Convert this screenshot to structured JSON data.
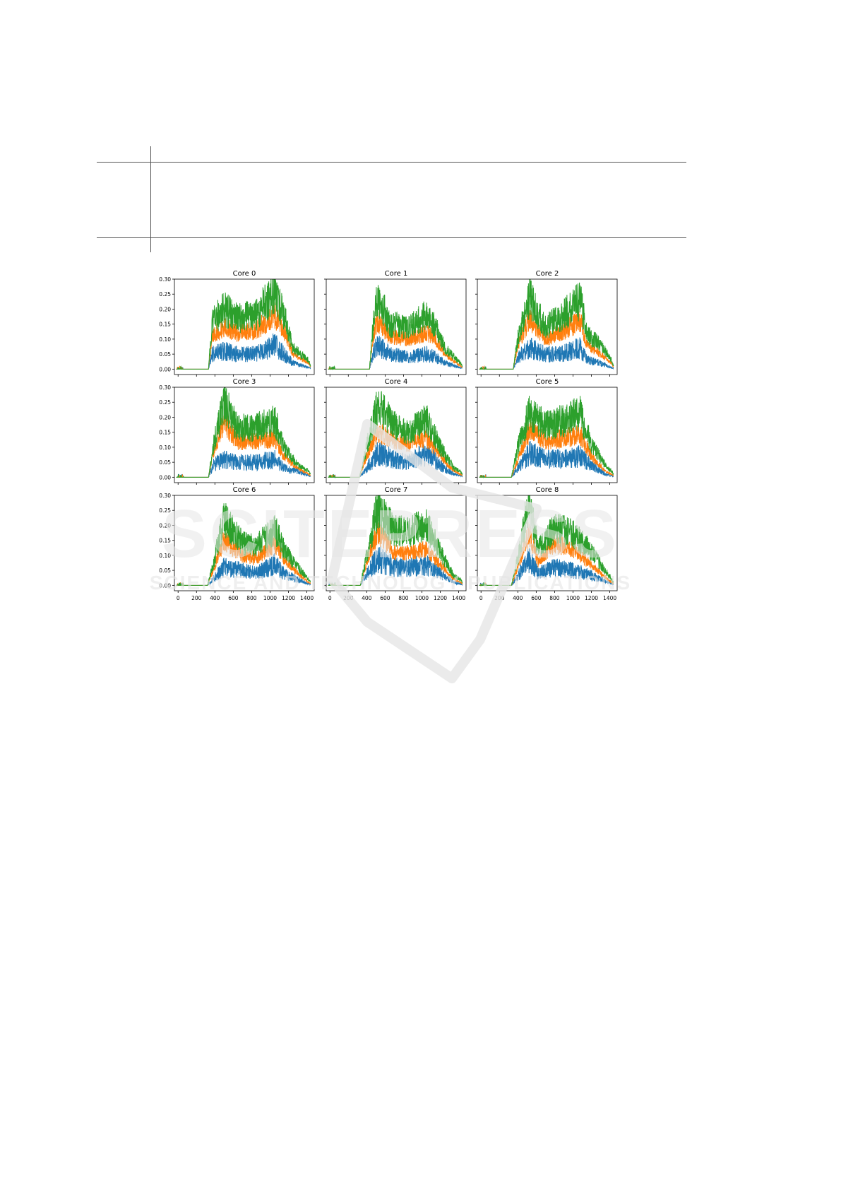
{
  "watermark": {
    "line1": "SCITEPRESS",
    "line2": "SCIENCE AND TECHNOLOGY PUBLICATIONS"
  },
  "colors": {
    "blue": "#1f77b4",
    "orange": "#ff7f0e",
    "green": "#2ca02c",
    "watermark": "#e6e6e6"
  },
  "chart_data": {
    "type": "line",
    "xlim": [
      -40,
      1480
    ],
    "ylim": [
      -0.018,
      0.3
    ],
    "xticks": [
      0,
      200,
      400,
      600,
      800,
      1000,
      1200,
      1400
    ],
    "yticks": [
      0.0,
      0.05,
      0.1,
      0.15,
      0.2,
      0.25,
      0.3
    ],
    "subplots": [
      {
        "title": "Core 0",
        "onset": 330,
        "peaks": [
          [
            370,
            0.05,
            0.11,
            0.16
          ],
          [
            500,
            0.06,
            0.14,
            0.2
          ],
          [
            650,
            0.05,
            0.12,
            0.17
          ],
          [
            850,
            0.05,
            0.13,
            0.18
          ],
          [
            1050,
            0.08,
            0.18,
            0.26
          ],
          [
            1150,
            0.05,
            0.13,
            0.18
          ],
          [
            1250,
            0.02,
            0.05,
            0.07
          ],
          [
            1420,
            0.005,
            0.02,
            0.03
          ]
        ]
      },
      {
        "title": "Core 1",
        "onset": 430,
        "peaks": [
          [
            470,
            0.05,
            0.11,
            0.15
          ],
          [
            520,
            0.08,
            0.16,
            0.25
          ],
          [
            650,
            0.05,
            0.11,
            0.15
          ],
          [
            850,
            0.04,
            0.1,
            0.14
          ],
          [
            1050,
            0.05,
            0.12,
            0.18
          ],
          [
            1150,
            0.04,
            0.1,
            0.14
          ],
          [
            1250,
            0.02,
            0.05,
            0.07
          ],
          [
            1420,
            0.005,
            0.01,
            0.02
          ]
        ]
      },
      {
        "title": "Core 2",
        "onset": 350,
        "peaks": [
          [
            400,
            0.04,
            0.08,
            0.1
          ],
          [
            530,
            0.07,
            0.17,
            0.24
          ],
          [
            700,
            0.05,
            0.1,
            0.14
          ],
          [
            850,
            0.05,
            0.12,
            0.17
          ],
          [
            1080,
            0.07,
            0.16,
            0.23
          ],
          [
            1150,
            0.03,
            0.08,
            0.12
          ],
          [
            1300,
            0.02,
            0.05,
            0.08
          ],
          [
            1420,
            0.005,
            0.02,
            0.03
          ]
        ]
      },
      {
        "title": "Core 3",
        "onset": 330,
        "peaks": [
          [
            380,
            0.04,
            0.08,
            0.1
          ],
          [
            500,
            0.06,
            0.18,
            0.25
          ],
          [
            650,
            0.05,
            0.12,
            0.16
          ],
          [
            850,
            0.05,
            0.12,
            0.17
          ],
          [
            1050,
            0.06,
            0.13,
            0.19
          ],
          [
            1150,
            0.03,
            0.07,
            0.1
          ],
          [
            1300,
            0.02,
            0.03,
            0.04
          ],
          [
            1420,
            0.005,
            0.01,
            0.02
          ]
        ]
      },
      {
        "title": "Core 4",
        "onset": 320,
        "peaks": [
          [
            400,
            0.03,
            0.07,
            0.1
          ],
          [
            520,
            0.08,
            0.15,
            0.24
          ],
          [
            700,
            0.06,
            0.12,
            0.17
          ],
          [
            850,
            0.05,
            0.11,
            0.15
          ],
          [
            1050,
            0.08,
            0.13,
            0.19
          ],
          [
            1200,
            0.04,
            0.07,
            0.1
          ],
          [
            1350,
            0.01,
            0.02,
            0.03
          ],
          [
            1420,
            0.005,
            0.01,
            0.02
          ]
        ]
      },
      {
        "title": "Core 5",
        "onset": 330,
        "peaks": [
          [
            400,
            0.03,
            0.06,
            0.1
          ],
          [
            530,
            0.08,
            0.16,
            0.22
          ],
          [
            700,
            0.06,
            0.12,
            0.17
          ],
          [
            900,
            0.06,
            0.13,
            0.19
          ],
          [
            1080,
            0.07,
            0.14,
            0.21
          ],
          [
            1200,
            0.04,
            0.07,
            0.11
          ],
          [
            1350,
            0.01,
            0.02,
            0.04
          ],
          [
            1420,
            0.005,
            0.01,
            0.02
          ]
        ]
      },
      {
        "title": "Core 6",
        "onset": 320,
        "peaks": [
          [
            380,
            0.02,
            0.05,
            0.07
          ],
          [
            500,
            0.06,
            0.15,
            0.22
          ],
          [
            700,
            0.05,
            0.1,
            0.14
          ],
          [
            850,
            0.04,
            0.09,
            0.13
          ],
          [
            1050,
            0.07,
            0.14,
            0.19
          ],
          [
            1150,
            0.04,
            0.09,
            0.12
          ],
          [
            1300,
            0.02,
            0.04,
            0.06
          ],
          [
            1420,
            0.005,
            0.01,
            0.02
          ]
        ]
      },
      {
        "title": "Core 7",
        "onset": 330,
        "peaks": [
          [
            400,
            0.04,
            0.08,
            0.1
          ],
          [
            520,
            0.09,
            0.18,
            0.26
          ],
          [
            700,
            0.06,
            0.11,
            0.18
          ],
          [
            850,
            0.06,
            0.11,
            0.18
          ],
          [
            1050,
            0.07,
            0.12,
            0.2
          ],
          [
            1200,
            0.04,
            0.07,
            0.11
          ],
          [
            1350,
            0.01,
            0.02,
            0.03
          ],
          [
            1420,
            0.005,
            0.01,
            0.02
          ]
        ]
      },
      {
        "title": "Core 8",
        "onset": 330,
        "peaks": [
          [
            400,
            0.03,
            0.06,
            0.09
          ],
          [
            520,
            0.09,
            0.18,
            0.28
          ],
          [
            620,
            0.04,
            0.08,
            0.12
          ],
          [
            800,
            0.06,
            0.14,
            0.19
          ],
          [
            1000,
            0.05,
            0.12,
            0.17
          ],
          [
            1150,
            0.04,
            0.08,
            0.13
          ],
          [
            1300,
            0.02,
            0.04,
            0.07
          ],
          [
            1420,
            0.005,
            0.01,
            0.02
          ]
        ]
      }
    ]
  }
}
